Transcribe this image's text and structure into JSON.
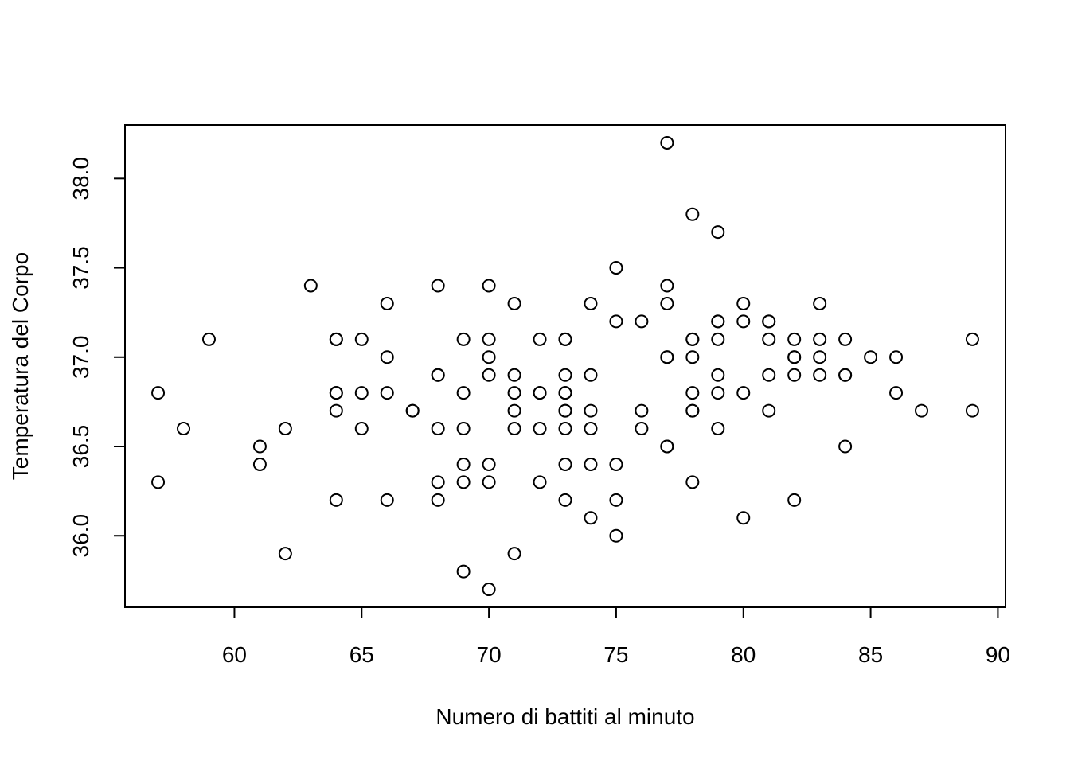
{
  "chart_data": {
    "type": "scatter",
    "title": "",
    "xlabel": "Numero di battiti al minuto",
    "ylabel": "Temperatura del Corpo",
    "xlim": [
      55.7,
      90.3
    ],
    "ylim": [
      35.6,
      38.3
    ],
    "x_ticks": [
      "60",
      "65",
      "70",
      "75",
      "80",
      "85",
      "90"
    ],
    "y_ticks": [
      "36.0",
      "36.5",
      "37.0",
      "37.5",
      "38.0"
    ],
    "grid": false,
    "legend": "none",
    "points": [
      [
        57,
        36.8
      ],
      [
        57,
        36.3
      ],
      [
        58,
        36.6
      ],
      [
        59,
        37.1
      ],
      [
        61,
        36.5
      ],
      [
        61,
        36.4
      ],
      [
        62,
        36.6
      ],
      [
        62,
        35.9
      ],
      [
        63,
        37.4
      ],
      [
        64,
        37.1
      ],
      [
        64,
        37.1
      ],
      [
        64,
        36.8
      ],
      [
        64,
        36.8
      ],
      [
        64,
        36.7
      ],
      [
        64,
        36.2
      ],
      [
        65,
        37.1
      ],
      [
        65,
        36.8
      ],
      [
        65,
        36.6
      ],
      [
        66,
        37.3
      ],
      [
        66,
        37.0
      ],
      [
        66,
        36.8
      ],
      [
        66,
        36.2
      ],
      [
        67,
        36.7
      ],
      [
        67,
        36.7
      ],
      [
        68,
        37.4
      ],
      [
        68,
        36.9
      ],
      [
        68,
        36.9
      ],
      [
        68,
        36.6
      ],
      [
        68,
        36.3
      ],
      [
        68,
        36.2
      ],
      [
        69,
        37.1
      ],
      [
        69,
        36.8
      ],
      [
        69,
        36.6
      ],
      [
        69,
        36.4
      ],
      [
        69,
        36.3
      ],
      [
        69,
        35.8
      ],
      [
        70,
        37.4
      ],
      [
        70,
        37.1
      ],
      [
        70,
        37.0
      ],
      [
        70,
        36.9
      ],
      [
        70,
        36.4
      ],
      [
        70,
        36.3
      ],
      [
        70,
        35.7
      ],
      [
        71,
        37.3
      ],
      [
        71,
        36.9
      ],
      [
        71,
        36.8
      ],
      [
        71,
        36.7
      ],
      [
        71,
        36.6
      ],
      [
        71,
        35.9
      ],
      [
        72,
        37.1
      ],
      [
        72,
        36.8
      ],
      [
        72,
        36.8
      ],
      [
        72,
        36.6
      ],
      [
        72,
        36.3
      ],
      [
        73,
        37.1
      ],
      [
        73,
        37.1
      ],
      [
        73,
        36.9
      ],
      [
        73,
        36.8
      ],
      [
        73,
        36.8
      ],
      [
        73,
        36.7
      ],
      [
        73,
        36.7
      ],
      [
        73,
        36.6
      ],
      [
        73,
        36.4
      ],
      [
        73,
        36.2
      ],
      [
        74,
        37.3
      ],
      [
        74,
        36.9
      ],
      [
        74,
        36.7
      ],
      [
        74,
        36.6
      ],
      [
        74,
        36.4
      ],
      [
        74,
        36.1
      ],
      [
        75,
        37.5
      ],
      [
        75,
        37.2
      ],
      [
        75,
        36.4
      ],
      [
        75,
        36.2
      ],
      [
        75,
        36.0
      ],
      [
        76,
        37.2
      ],
      [
        76,
        36.7
      ],
      [
        76,
        36.6
      ],
      [
        77,
        38.2
      ],
      [
        77,
        37.4
      ],
      [
        77,
        37.3
      ],
      [
        77,
        37.0
      ],
      [
        77,
        37.0
      ],
      [
        77,
        36.5
      ],
      [
        77,
        36.5
      ],
      [
        78,
        37.8
      ],
      [
        78,
        37.1
      ],
      [
        78,
        37.1
      ],
      [
        78,
        37.0
      ],
      [
        78,
        36.8
      ],
      [
        78,
        36.7
      ],
      [
        78,
        36.7
      ],
      [
        78,
        36.3
      ],
      [
        79,
        37.7
      ],
      [
        79,
        37.2
      ],
      [
        79,
        37.2
      ],
      [
        79,
        37.1
      ],
      [
        79,
        36.9
      ],
      [
        79,
        36.8
      ],
      [
        79,
        36.6
      ],
      [
        80,
        37.3
      ],
      [
        80,
        37.2
      ],
      [
        80,
        36.8
      ],
      [
        80,
        36.1
      ],
      [
        81,
        37.2
      ],
      [
        81,
        37.2
      ],
      [
        81,
        37.1
      ],
      [
        81,
        36.9
      ],
      [
        81,
        36.7
      ],
      [
        82,
        37.1
      ],
      [
        82,
        37.0
      ],
      [
        82,
        37.0
      ],
      [
        82,
        36.9
      ],
      [
        82,
        36.2
      ],
      [
        83,
        37.3
      ],
      [
        83,
        37.1
      ],
      [
        83,
        37.0
      ],
      [
        83,
        36.9
      ],
      [
        84,
        37.1
      ],
      [
        84,
        36.9
      ],
      [
        84,
        36.9
      ],
      [
        84,
        36.5
      ],
      [
        85,
        37.0
      ],
      [
        86,
        37.0
      ],
      [
        86,
        36.8
      ],
      [
        87,
        36.7
      ],
      [
        89,
        37.1
      ],
      [
        89,
        36.7
      ]
    ]
  }
}
